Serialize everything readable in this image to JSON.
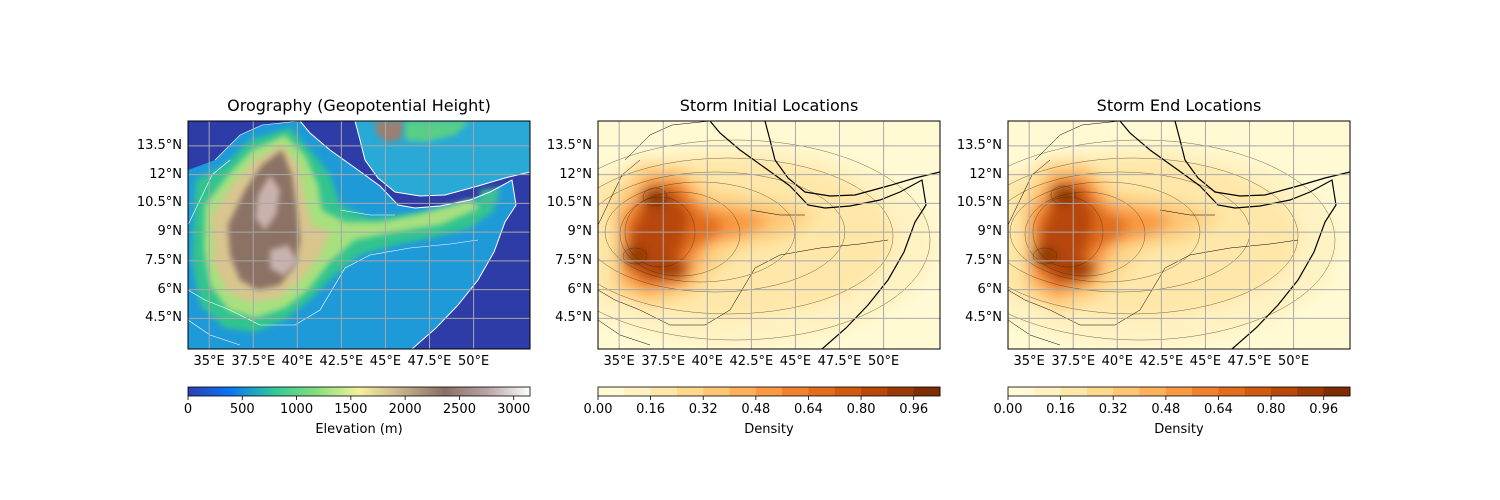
{
  "figure": {
    "panels": [
      {
        "id": "orography",
        "title": "Orography (Geopotential Height)",
        "colorbar": {
          "label": "Elevation (m)",
          "ticks": [
            "0",
            "500",
            "1000",
            "1500",
            "2000",
            "2500",
            "3000"
          ],
          "range": [
            0,
            3150
          ],
          "colormap": [
            "#2a3fb4",
            "#0a77f2",
            "#30c79a",
            "#86de7d",
            "#f4f19a",
            "#c6b08c",
            "#8a6f66",
            "#b8a4a4",
            "#ffffff"
          ]
        }
      },
      {
        "id": "storm-initial",
        "title": "Storm Initial Locations",
        "colorbar": {
          "label": "Density",
          "ticks": [
            "0.00",
            "0.16",
            "0.32",
            "0.48",
            "0.64",
            "0.80",
            "0.96"
          ],
          "range": [
            0,
            1.04
          ],
          "levels": 13,
          "colormap": [
            "#fffad3",
            "#fff2c2",
            "#fee7a8",
            "#fed88d",
            "#fec574",
            "#fdb15c",
            "#f99a43",
            "#ef822e",
            "#e16d1d",
            "#cf5a10",
            "#b8470a",
            "#9a3a06",
            "#7e2d04"
          ]
        }
      },
      {
        "id": "storm-end",
        "title": "Storm End Locations",
        "colorbar": {
          "label": "Density",
          "ticks": [
            "0.00",
            "0.16",
            "0.32",
            "0.48",
            "0.64",
            "0.80",
            "0.96"
          ],
          "range": [
            0,
            1.04
          ],
          "levels": 13,
          "colormap": [
            "#fffad3",
            "#fff2c2",
            "#fee7a8",
            "#fed88d",
            "#fec574",
            "#fdb15c",
            "#f99a43",
            "#ef822e",
            "#e16d1d",
            "#cf5a10",
            "#b8470a",
            "#9a3a06",
            "#7e2d04"
          ]
        }
      }
    ],
    "map_axes": {
      "lon_ticks": [
        "35°E",
        "37.5°E",
        "40°E",
        "42.5°E",
        "45°E",
        "47.5°E",
        "50°E"
      ],
      "lat_ticks": [
        "13.5°N",
        "12°N",
        "10.5°N",
        "9°N",
        "7.5°N",
        "6°N",
        "4.5°N"
      ],
      "lon_range": [
        33.8,
        53.2
      ],
      "lat_range": [
        2.9,
        14.8
      ],
      "gridlines": true
    }
  }
}
